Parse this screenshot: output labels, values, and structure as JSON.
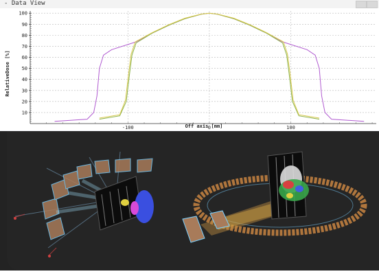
{
  "window": {
    "title": "- Data View"
  },
  "chart_data": {
    "type": "line",
    "title": "",
    "xlabel": "Off axis [mm]",
    "ylabel": "RelativeDose [%]",
    "xlim": [
      -220,
      205
    ],
    "ylim": [
      0,
      102
    ],
    "x_ticks": [
      -100,
      0,
      100
    ],
    "y_ticks": [
      10,
      20,
      30,
      40,
      50,
      60,
      70,
      80,
      90,
      100
    ],
    "grid": true,
    "legend": "none",
    "series": [
      {
        "color": "#b05ad0",
        "x": [
          -190,
          -150,
          -142,
          -138,
          -135,
          -130,
          -120,
          -90,
          -70,
          -50,
          -30,
          -10,
          0,
          10,
          30,
          50,
          70,
          90,
          120,
          130,
          135,
          138,
          142,
          150,
          190
        ],
        "y": [
          2,
          4,
          10,
          25,
          50,
          62,
          67,
          74,
          82,
          89,
          95,
          99,
          100,
          99,
          95,
          89,
          82,
          74,
          67,
          62,
          50,
          25,
          10,
          4,
          2
        ]
      },
      {
        "color": "#8bb24a",
        "x": [
          -135,
          -110,
          -102,
          -98,
          -95,
          -90,
          -70,
          -50,
          -30,
          -10,
          0,
          10,
          30,
          50,
          70,
          90,
          95,
          98,
          102,
          110,
          135
        ],
        "y": [
          4,
          7,
          20,
          45,
          62,
          73,
          82,
          89,
          95,
          99,
          100,
          99,
          95,
          89,
          82,
          73,
          62,
          45,
          20,
          7,
          4
        ]
      },
      {
        "color": "#d8c84a",
        "x": [
          -135,
          -110,
          -103,
          -99,
          -96,
          -91,
          -70,
          -50,
          -30,
          -10,
          0,
          10,
          30,
          50,
          70,
          91,
          96,
          99,
          103,
          110,
          135
        ],
        "y": [
          5,
          8,
          21,
          46,
          63,
          74,
          82.5,
          89.5,
          95.5,
          99.2,
          100,
          99.2,
          95.5,
          89.5,
          82.5,
          74,
          63,
          46,
          21,
          8,
          5
        ]
      }
    ]
  },
  "viewport": {
    "background": "#252525",
    "left_scene": "multi-field gantry arc with treatment beams",
    "right_scene": "couch with patient CT volume and beam"
  }
}
